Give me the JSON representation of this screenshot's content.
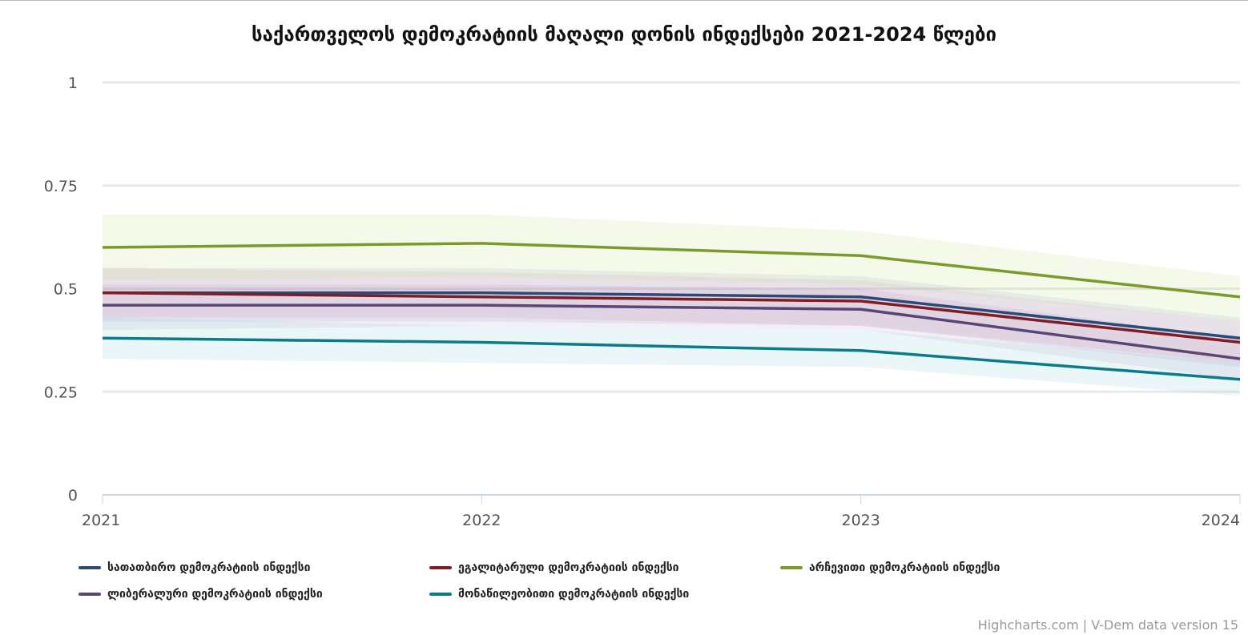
{
  "chart_data": {
    "type": "line",
    "title": "საქართველოს დემოკრატიის მაღალი დონის ინდექსები 2021-2024 წლები",
    "x": [
      "2021",
      "2022",
      "2023",
      "2024"
    ],
    "xlabel": "",
    "ylabel": "",
    "ylim": [
      0,
      1
    ],
    "yticks": [
      "0",
      "0.25",
      "0.5",
      "0.75",
      "1"
    ],
    "grid": true,
    "legend_position": "bottom",
    "series": [
      {
        "name": "სათათბირო დემოკრატიის ინდექსი",
        "color": "#2b4a7a",
        "band_color": "rgba(110,140,190,0.13)",
        "values": [
          0.49,
          0.49,
          0.48,
          0.38
        ],
        "low": [
          0.42,
          0.42,
          0.41,
          0.31
        ],
        "high": [
          0.55,
          0.55,
          0.53,
          0.43
        ]
      },
      {
        "name": "ეგალიტარული დემოკრატიის ინდექსი",
        "color": "#7f1d24",
        "band_color": "rgba(220,120,150,0.13)",
        "values": [
          0.49,
          0.48,
          0.47,
          0.37
        ],
        "low": [
          0.43,
          0.43,
          0.41,
          0.32
        ],
        "high": [
          0.55,
          0.54,
          0.52,
          0.42
        ]
      },
      {
        "name": "არჩევითი დემოკრატიის ინდექსი",
        "color": "#7a9a2a",
        "band_color": "rgba(200,220,140,0.18)",
        "values": [
          0.6,
          0.61,
          0.58,
          0.48
        ],
        "low": [
          0.52,
          0.53,
          0.51,
          0.42
        ],
        "high": [
          0.68,
          0.68,
          0.64,
          0.53
        ]
      },
      {
        "name": "ლიბერალური დემოკრატიის ინდექსი",
        "color": "#5a4577",
        "band_color": "rgba(170,130,180,0.13)",
        "values": [
          0.46,
          0.46,
          0.45,
          0.33
        ],
        "low": [
          0.4,
          0.41,
          0.4,
          0.28
        ],
        "high": [
          0.51,
          0.51,
          0.5,
          0.38
        ]
      },
      {
        "name": "მონაწილეობითი დემოკრატიის ინდექსი",
        "color": "#0b7b8c",
        "band_color": "rgba(150,210,220,0.2)",
        "values": [
          0.38,
          0.37,
          0.35,
          0.28
        ],
        "low": [
          0.33,
          0.32,
          0.31,
          0.24
        ],
        "high": [
          0.43,
          0.41,
          0.4,
          0.32
        ]
      }
    ]
  },
  "credits": "Highcharts.com | V-Dem data version 15"
}
